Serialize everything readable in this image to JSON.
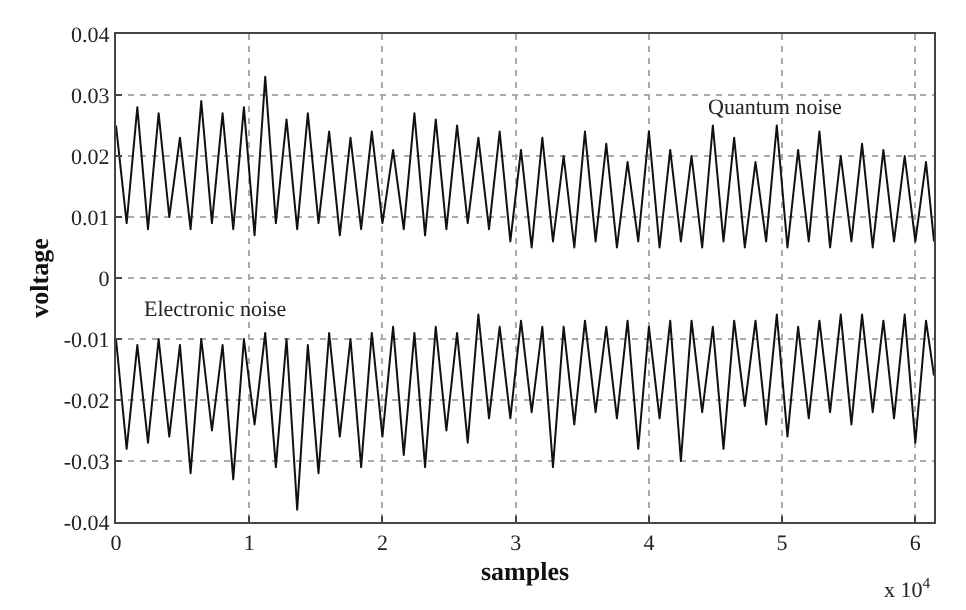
{
  "chart_data": {
    "type": "line",
    "xlabel": "samples",
    "ylabel": "voltage",
    "annotations": [
      "x 10$^{4}$"
    ],
    "x": [
      0,
      0.08,
      0.16,
      0.24,
      0.32,
      0.4,
      0.48,
      0.56,
      0.64,
      0.72,
      0.8,
      0.88,
      0.96,
      1.04,
      1.12,
      1.2,
      1.28,
      1.36,
      1.44,
      1.52,
      1.6,
      1.68,
      1.76,
      1.84,
      1.92,
      2.0,
      2.08,
      2.16,
      2.24,
      2.32,
      2.4,
      2.48,
      2.56,
      2.64,
      2.72,
      2.8,
      2.88,
      2.96,
      3.04,
      3.12,
      3.2,
      3.28,
      3.36,
      3.44,
      3.52,
      3.6,
      3.68,
      3.76,
      3.84,
      3.92,
      4.0,
      4.08,
      4.16,
      4.24,
      4.32,
      4.4,
      4.48,
      4.56,
      4.64,
      4.72,
      4.8,
      4.88,
      4.96,
      5.04,
      5.12,
      5.2,
      5.28,
      5.36,
      5.44,
      5.52,
      5.6,
      5.68,
      5.76,
      5.84,
      5.92,
      6.0,
      6.08,
      6.14
    ],
    "series": [
      {
        "name": "Quantum noise",
        "color": "#111111",
        "values": [
          0.025,
          0.009,
          0.028,
          0.008,
          0.027,
          0.01,
          0.023,
          0.008,
          0.029,
          0.009,
          0.027,
          0.008,
          0.028,
          0.007,
          0.033,
          0.009,
          0.026,
          0.008,
          0.027,
          0.009,
          0.024,
          0.007,
          0.023,
          0.008,
          0.024,
          0.009,
          0.021,
          0.008,
          0.027,
          0.007,
          0.026,
          0.008,
          0.025,
          0.009,
          0.023,
          0.008,
          0.024,
          0.006,
          0.021,
          0.005,
          0.023,
          0.006,
          0.02,
          0.005,
          0.024,
          0.006,
          0.022,
          0.005,
          0.019,
          0.006,
          0.024,
          0.005,
          0.021,
          0.006,
          0.02,
          0.005,
          0.025,
          0.006,
          0.023,
          0.005,
          0.019,
          0.006,
          0.025,
          0.005,
          0.021,
          0.006,
          0.024,
          0.005,
          0.02,
          0.006,
          0.022,
          0.005,
          0.021,
          0.006,
          0.02,
          0.006,
          0.019,
          0.006
        ]
      },
      {
        "name": "Electronic noise",
        "color": "#111111",
        "values": [
          -0.01,
          -0.028,
          -0.011,
          -0.027,
          -0.01,
          -0.026,
          -0.011,
          -0.032,
          -0.01,
          -0.025,
          -0.011,
          -0.033,
          -0.01,
          -0.024,
          -0.009,
          -0.031,
          -0.01,
          -0.038,
          -0.011,
          -0.032,
          -0.009,
          -0.026,
          -0.01,
          -0.031,
          -0.009,
          -0.026,
          -0.008,
          -0.029,
          -0.009,
          -0.031,
          -0.008,
          -0.025,
          -0.009,
          -0.027,
          -0.006,
          -0.023,
          -0.008,
          -0.023,
          -0.007,
          -0.022,
          -0.008,
          -0.031,
          -0.008,
          -0.024,
          -0.007,
          -0.022,
          -0.008,
          -0.023,
          -0.007,
          -0.028,
          -0.008,
          -0.023,
          -0.007,
          -0.03,
          -0.007,
          -0.022,
          -0.008,
          -0.028,
          -0.007,
          -0.021,
          -0.007,
          -0.024,
          -0.006,
          -0.026,
          -0.008,
          -0.023,
          -0.007,
          -0.022,
          -0.006,
          -0.024,
          -0.006,
          -0.022,
          -0.007,
          -0.023,
          -0.006,
          -0.027,
          -0.007,
          -0.016
        ]
      }
    ],
    "xlim": [
      0,
      6.14
    ],
    "xticks": [
      0,
      1,
      2,
      3,
      4,
      5,
      6
    ],
    "ylim": [
      -0.04,
      0.04
    ],
    "yticks": [
      -0.04,
      -0.03,
      -0.02,
      -0.01,
      0,
      0.01,
      0.02,
      0.03,
      0.04
    ],
    "grid": true,
    "legend": false,
    "marker": "none",
    "line_style": "solid"
  }
}
